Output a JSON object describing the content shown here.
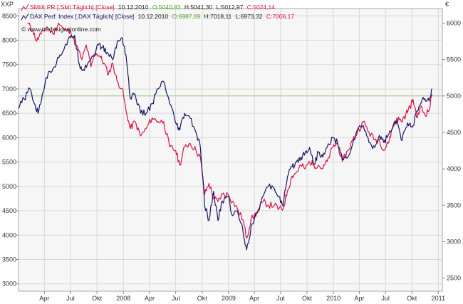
{
  "chart_data": {
    "type": "line",
    "left_axis_unit": "XXP",
    "right_axis_unit": "€",
    "copyright": "© www.tradesignalonline.com",
    "legend": [
      {
        "name": "SMI® PR [.SMI Täglich] [Close]",
        "date": "10.12.2010",
        "open_label": "O:5040,93",
        "high_label": "H:5041,30",
        "low_label": "L:5012,97",
        "close_label": "C:5024,14",
        "color": "#dd1144"
      },
      {
        "name": "DAX Perf. Index [.DAX Täglich] [Close]",
        "date": "10.12.2010",
        "open_label": "O:6987,69",
        "high_label": "H:7018,11",
        "low_label": "L:6973,32",
        "close_label": "C:7006,17",
        "color": "#1a1464"
      }
    ],
    "open_color": "#44aa22",
    "close_color": "#dd1144",
    "y_left": {
      "ticks": [
        3000,
        3500,
        4000,
        4500,
        5000,
        5500,
        6000,
        6500,
        7000,
        7500,
        8000,
        8500
      ],
      "range": [
        2850,
        8650
      ]
    },
    "y_right": {
      "ticks": [
        2500,
        3000,
        3500,
        4000,
        4500,
        5000,
        5500,
        6000
      ],
      "range": [
        2320,
        6200
      ]
    },
    "x_ticks": [
      "Apr",
      "Jul",
      "Okt",
      "2008",
      "Apr",
      "Jul",
      "Okt",
      "2009",
      "Apr",
      "Jul",
      "Okt",
      "2010",
      "Apr",
      "Jul",
      "Okt",
      "2011"
    ],
    "x_range": [
      "2007-01-01",
      "2011-01-15"
    ],
    "reference_line": {
      "axis": "right",
      "value": 5000
    },
    "series": [
      {
        "name": "SMI® PR",
        "axis": "right",
        "color": "#dd1144",
        "points": [
          [
            "2007-02-01",
            6000
          ],
          [
            "2007-02-20",
            5900
          ],
          [
            "2007-03-05",
            5750
          ],
          [
            "2007-03-20",
            5850
          ],
          [
            "2007-04-10",
            5950
          ],
          [
            "2007-05-01",
            5850
          ],
          [
            "2007-05-20",
            6000
          ],
          [
            "2007-06-10",
            5900
          ],
          [
            "2007-07-01",
            5900
          ],
          [
            "2007-07-20",
            5700
          ],
          [
            "2007-08-10",
            5500
          ],
          [
            "2007-08-25",
            5700
          ],
          [
            "2007-09-10",
            5400
          ],
          [
            "2007-09-25",
            5600
          ],
          [
            "2007-10-10",
            5550
          ],
          [
            "2007-10-25",
            5450
          ],
          [
            "2007-11-10",
            5300
          ],
          [
            "2007-11-25",
            5450
          ],
          [
            "2007-12-10",
            5200
          ],
          [
            "2007-12-28",
            5100
          ],
          [
            "2008-01-10",
            4800
          ],
          [
            "2008-01-25",
            4550
          ],
          [
            "2008-02-10",
            4650
          ],
          [
            "2008-03-01",
            4450
          ],
          [
            "2008-03-20",
            4550
          ],
          [
            "2008-04-10",
            4700
          ],
          [
            "2008-05-01",
            4650
          ],
          [
            "2008-05-20",
            4650
          ],
          [
            "2008-06-10",
            4300
          ],
          [
            "2008-07-01",
            4250
          ],
          [
            "2008-07-15",
            4050
          ],
          [
            "2008-08-01",
            4300
          ],
          [
            "2008-08-20",
            4350
          ],
          [
            "2008-09-10",
            4250
          ],
          [
            "2008-09-25",
            4150
          ],
          [
            "2008-10-10",
            3650
          ],
          [
            "2008-10-25",
            3800
          ],
          [
            "2008-11-10",
            3600
          ],
          [
            "2008-11-25",
            3550
          ],
          [
            "2008-12-10",
            3650
          ],
          [
            "2008-12-30",
            3650
          ],
          [
            "2009-01-15",
            3550
          ],
          [
            "2009-02-01",
            3450
          ],
          [
            "2009-02-20",
            3300
          ],
          [
            "2009-03-05",
            3050
          ],
          [
            "2009-03-20",
            3300
          ],
          [
            "2009-04-10",
            3400
          ],
          [
            "2009-05-01",
            3550
          ],
          [
            "2009-05-20",
            3500
          ],
          [
            "2009-06-10",
            3500
          ],
          [
            "2009-06-25",
            3450
          ],
          [
            "2009-07-10",
            3450
          ],
          [
            "2009-07-25",
            3700
          ],
          [
            "2009-08-10",
            3900
          ],
          [
            "2009-08-25",
            3950
          ],
          [
            "2009-09-10",
            4050
          ],
          [
            "2009-09-25",
            4000
          ],
          [
            "2009-10-10",
            4100
          ],
          [
            "2009-10-25",
            4050
          ],
          [
            "2009-11-10",
            4050
          ],
          [
            "2009-11-25",
            4000
          ],
          [
            "2009-12-10",
            4100
          ],
          [
            "2009-12-30",
            4300
          ],
          [
            "2010-01-15",
            4350
          ],
          [
            "2010-02-01",
            4100
          ],
          [
            "2010-02-20",
            4250
          ],
          [
            "2010-03-10",
            4400
          ],
          [
            "2010-03-25",
            4500
          ],
          [
            "2010-04-15",
            4650
          ],
          [
            "2010-05-05",
            4500
          ],
          [
            "2010-05-25",
            4400
          ],
          [
            "2010-06-10",
            4400
          ],
          [
            "2010-06-25",
            4250
          ],
          [
            "2010-07-10",
            4350
          ],
          [
            "2010-07-25",
            4550
          ],
          [
            "2010-08-10",
            4700
          ],
          [
            "2010-08-25",
            4650
          ],
          [
            "2010-09-10",
            4750
          ],
          [
            "2010-09-25",
            4850
          ],
          [
            "2010-10-05",
            4950
          ],
          [
            "2010-10-20",
            4700
          ],
          [
            "2010-11-01",
            4850
          ],
          [
            "2010-11-15",
            4750
          ],
          [
            "2010-11-30",
            4800
          ],
          [
            "2010-12-10",
            5024
          ]
        ]
      },
      {
        "name": "DAX Perf. Index",
        "axis": "left",
        "color": "#1a1464",
        "points": [
          [
            "2007-01-01",
            6600
          ],
          [
            "2007-01-20",
            6800
          ],
          [
            "2007-02-10",
            7000
          ],
          [
            "2007-02-25",
            6700
          ],
          [
            "2007-03-10",
            6500
          ],
          [
            "2007-03-25",
            6900
          ],
          [
            "2007-04-15",
            7350
          ],
          [
            "2007-05-05",
            7450
          ],
          [
            "2007-05-25",
            7700
          ],
          [
            "2007-06-10",
            7850
          ],
          [
            "2007-07-01",
            8050
          ],
          [
            "2007-07-15",
            8100
          ],
          [
            "2007-08-01",
            7500
          ],
          [
            "2007-08-15",
            7400
          ],
          [
            "2007-09-01",
            7550
          ],
          [
            "2007-09-20",
            7700
          ],
          [
            "2007-10-05",
            7900
          ],
          [
            "2007-10-20",
            7850
          ],
          [
            "2007-11-05",
            7750
          ],
          [
            "2007-11-25",
            7600
          ],
          [
            "2007-12-10",
            7950
          ],
          [
            "2007-12-28",
            8050
          ],
          [
            "2008-01-10",
            7700
          ],
          [
            "2008-01-25",
            6800
          ],
          [
            "2008-02-10",
            6900
          ],
          [
            "2008-03-01",
            6500
          ],
          [
            "2008-03-20",
            6500
          ],
          [
            "2008-04-10",
            6700
          ],
          [
            "2008-05-01",
            7000
          ],
          [
            "2008-05-20",
            7150
          ],
          [
            "2008-06-10",
            6700
          ],
          [
            "2008-07-01",
            6300
          ],
          [
            "2008-07-15",
            6150
          ],
          [
            "2008-08-01",
            6500
          ],
          [
            "2008-08-20",
            6400
          ],
          [
            "2008-09-10",
            6100
          ],
          [
            "2008-09-25",
            5800
          ],
          [
            "2008-10-10",
            4600
          ],
          [
            "2008-10-25",
            4300
          ],
          [
            "2008-11-10",
            4900
          ],
          [
            "2008-11-25",
            4300
          ],
          [
            "2008-12-10",
            4700
          ],
          [
            "2008-12-30",
            4800
          ],
          [
            "2009-01-15",
            4400
          ],
          [
            "2009-02-01",
            4500
          ],
          [
            "2009-02-20",
            4100
          ],
          [
            "2009-03-05",
            3700
          ],
          [
            "2009-03-20",
            4150
          ],
          [
            "2009-04-10",
            4450
          ],
          [
            "2009-05-01",
            4800
          ],
          [
            "2009-05-20",
            5000
          ],
          [
            "2009-06-10",
            4950
          ],
          [
            "2009-06-25",
            4800
          ],
          [
            "2009-07-10",
            4600
          ],
          [
            "2009-07-25",
            5200
          ],
          [
            "2009-08-10",
            5400
          ],
          [
            "2009-08-25",
            5500
          ],
          [
            "2009-09-10",
            5600
          ],
          [
            "2009-09-25",
            5700
          ],
          [
            "2009-10-10",
            5800
          ],
          [
            "2009-10-25",
            5450
          ],
          [
            "2009-11-10",
            5700
          ],
          [
            "2009-11-25",
            5600
          ],
          [
            "2009-12-10",
            5800
          ],
          [
            "2009-12-30",
            6000
          ],
          [
            "2010-01-15",
            5900
          ],
          [
            "2010-02-01",
            5550
          ],
          [
            "2010-02-20",
            5600
          ],
          [
            "2010-03-10",
            5900
          ],
          [
            "2010-03-25",
            6150
          ],
          [
            "2010-04-15",
            6250
          ],
          [
            "2010-05-05",
            5900
          ],
          [
            "2010-05-25",
            5800
          ],
          [
            "2010-06-10",
            6050
          ],
          [
            "2010-06-25",
            5900
          ],
          [
            "2010-07-10",
            6050
          ],
          [
            "2010-07-25",
            6200
          ],
          [
            "2010-08-10",
            6350
          ],
          [
            "2010-08-25",
            5950
          ],
          [
            "2010-09-10",
            6200
          ],
          [
            "2010-09-25",
            6300
          ],
          [
            "2010-10-05",
            6250
          ],
          [
            "2010-10-20",
            6550
          ],
          [
            "2010-11-01",
            6700
          ],
          [
            "2010-11-15",
            6800
          ],
          [
            "2010-11-30",
            6750
          ],
          [
            "2010-12-10",
            7006
          ]
        ]
      }
    ]
  }
}
